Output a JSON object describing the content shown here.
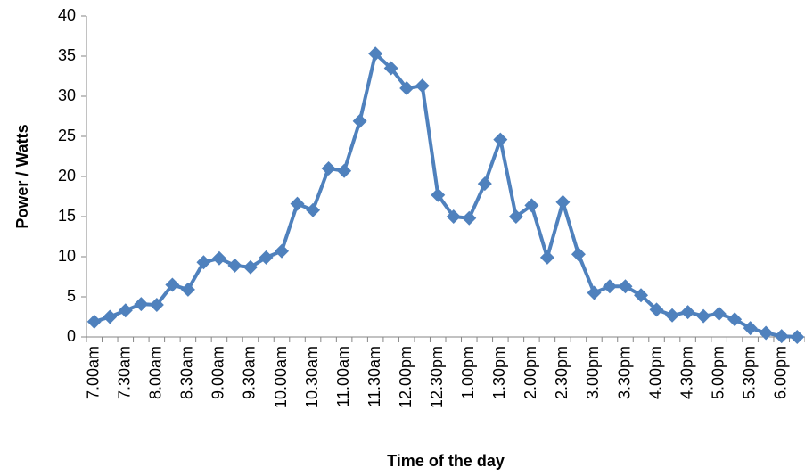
{
  "chart_data": {
    "type": "line",
    "ylabel": "Power / Watts",
    "xlabel": "Time of the day",
    "categories": [
      "7.00am",
      null,
      "7.30am",
      null,
      "8.00am",
      null,
      "8.30am",
      null,
      "9.00am",
      null,
      "9.30am",
      null,
      "10.00am",
      null,
      "10.30am",
      null,
      "11.00am",
      null,
      "11.30am",
      null,
      "12.00pm",
      null,
      "12.30pm",
      null,
      "1.00pm",
      null,
      "1.30pm",
      null,
      "2.00pm",
      null,
      "2.30pm",
      null,
      "3.00pm",
      null,
      "3.30pm",
      null,
      "4.00pm",
      null,
      "4.30pm",
      null,
      "5.00pm",
      null,
      "5.30pm",
      null,
      "6.00pm",
      null
    ],
    "values": [
      1.9,
      2.5,
      3.3,
      4.1,
      4.0,
      6.5,
      5.9,
      9.3,
      9.8,
      8.9,
      8.7,
      9.9,
      10.7,
      16.6,
      15.8,
      21.0,
      20.7,
      26.9,
      35.3,
      33.5,
      31.0,
      31.3,
      17.7,
      15.0,
      14.8,
      19.1,
      24.6,
      15.0,
      16.4,
      9.9,
      16.8,
      10.3,
      5.5,
      6.3,
      6.3,
      5.2,
      3.4,
      2.7,
      3.1,
      2.6,
      2.9,
      2.2,
      1.1,
      0.5,
      0.1,
      0.0
    ],
    "color": "#4f81bd",
    "ylim": [
      0,
      40
    ],
    "yticks": [
      0,
      5,
      10,
      15,
      20,
      25,
      30,
      35,
      40
    ],
    "grid": false
  }
}
